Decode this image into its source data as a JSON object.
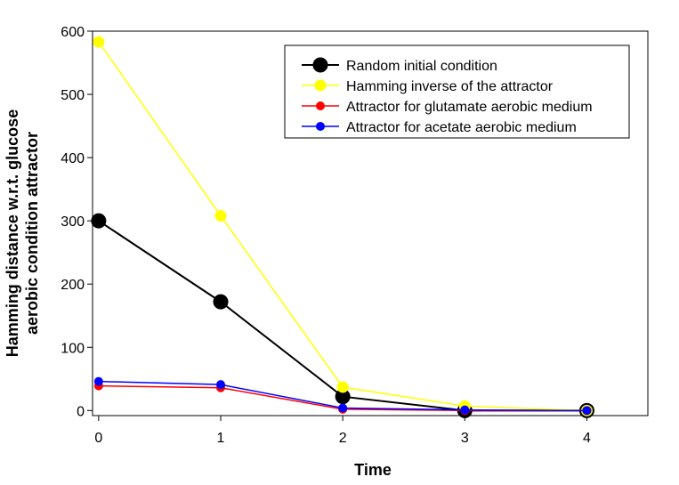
{
  "chart_data": {
    "type": "line",
    "title": "",
    "xlabel": "Time",
    "ylabel_lines": [
      "Hamming distance w.r.t. glucose",
      "aerobic condition attractor"
    ],
    "x": [
      0,
      1,
      2,
      3,
      4
    ],
    "xlim": [
      -0.05,
      4.5
    ],
    "ylim": [
      -8,
      600
    ],
    "xticks": [
      0,
      1,
      2,
      3,
      4
    ],
    "yticks": [
      0,
      100,
      200,
      300,
      400,
      500,
      600
    ],
    "legend_position": "top-right",
    "series": [
      {
        "name": "Random initial condition",
        "color": "#000000",
        "marker": "large",
        "values": [
          300,
          172,
          22,
          0,
          0
        ]
      },
      {
        "name": "Hamming inverse of the attractor",
        "color": "#ffff00",
        "marker": "medium",
        "values": [
          583,
          308,
          37,
          7,
          0
        ]
      },
      {
        "name": "Attractor for glutamate aerobic medium",
        "color": "#ff0000",
        "marker": "small",
        "values": [
          39,
          36,
          2,
          0,
          0
        ]
      },
      {
        "name": "Attractor for acetate aerobic medium",
        "color": "#0000ff",
        "marker": "small",
        "values": [
          46,
          41,
          4,
          1,
          0
        ]
      }
    ]
  }
}
